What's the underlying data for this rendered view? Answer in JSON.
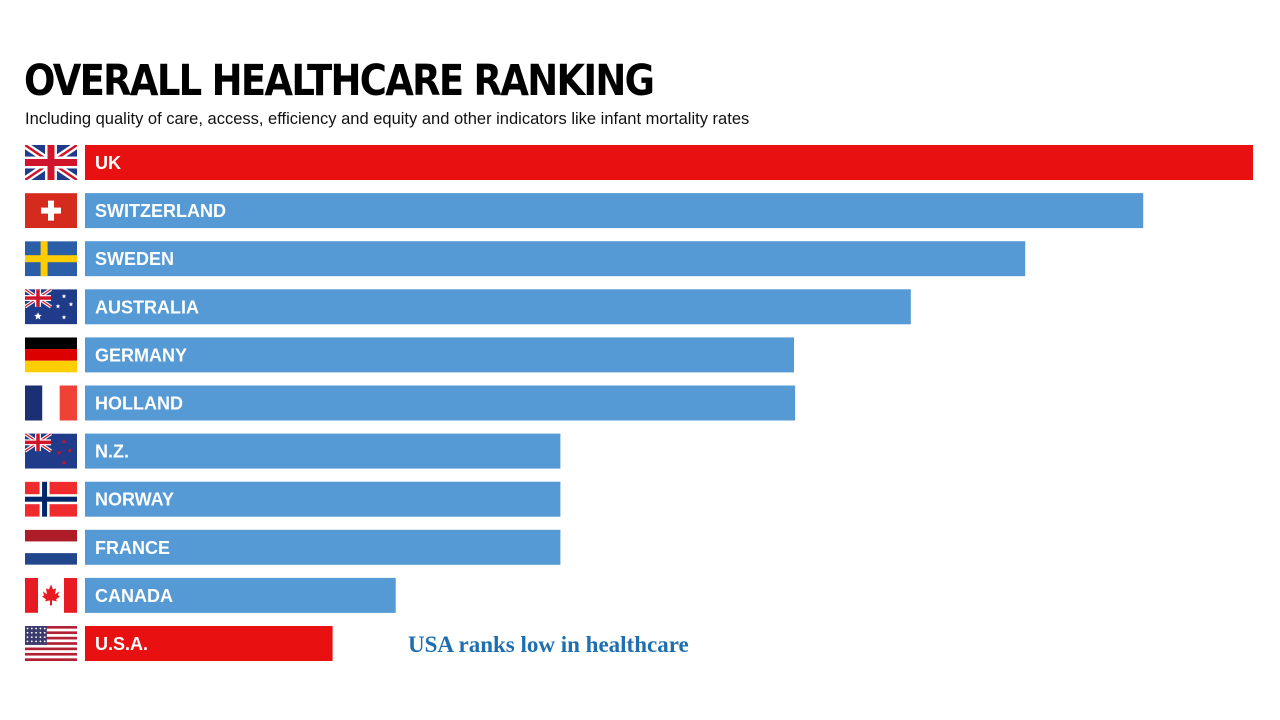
{
  "colors": {
    "bar_default": "#5599d5",
    "bar_highlight": "#e81010",
    "label_text": "#ffffff",
    "annotation_text": "#1f6fb0"
  },
  "chart_data": {
    "type": "bar",
    "orientation": "horizontal",
    "title": "OVERALL HEALTHCARE RANKING",
    "subtitle": "Including quality of care, access, efficiency and equity and other indicators like infant mortality rates",
    "xlim": [
      0,
      100
    ],
    "grid": false,
    "legend": "none",
    "bars": [
      {
        "label": "UK",
        "value": 100,
        "highlight": true,
        "flag": "uk-flag-icon"
      },
      {
        "label": "SWITZERLAND",
        "value": 90.6,
        "highlight": false,
        "flag": "switzerland-flag-icon"
      },
      {
        "label": "SWEDEN",
        "value": 80.5,
        "highlight": false,
        "flag": "sweden-flag-icon"
      },
      {
        "label": "AUSTRALIA",
        "value": 70.7,
        "highlight": false,
        "flag": "australia-flag-icon"
      },
      {
        "label": "GERMANY",
        "value": 60.7,
        "highlight": false,
        "flag": "germany-flag-icon"
      },
      {
        "label": "HOLLAND",
        "value": 60.8,
        "highlight": false,
        "flag": "france-flag-icon"
      },
      {
        "label": "N.Z.",
        "value": 40.7,
        "highlight": false,
        "flag": "new-zealand-flag-icon"
      },
      {
        "label": "NORWAY",
        "value": 40.7,
        "highlight": false,
        "flag": "norway-flag-icon"
      },
      {
        "label": "FRANCE",
        "value": 40.7,
        "highlight": false,
        "flag": "netherlands-flag-icon"
      },
      {
        "label": "CANADA",
        "value": 26.6,
        "highlight": false,
        "flag": "canada-flag-icon"
      },
      {
        "label": "U.S.A.",
        "value": 21.2,
        "highlight": true,
        "flag": "usa-flag-icon"
      }
    ]
  },
  "annotation": "USA ranks low in healthcare"
}
